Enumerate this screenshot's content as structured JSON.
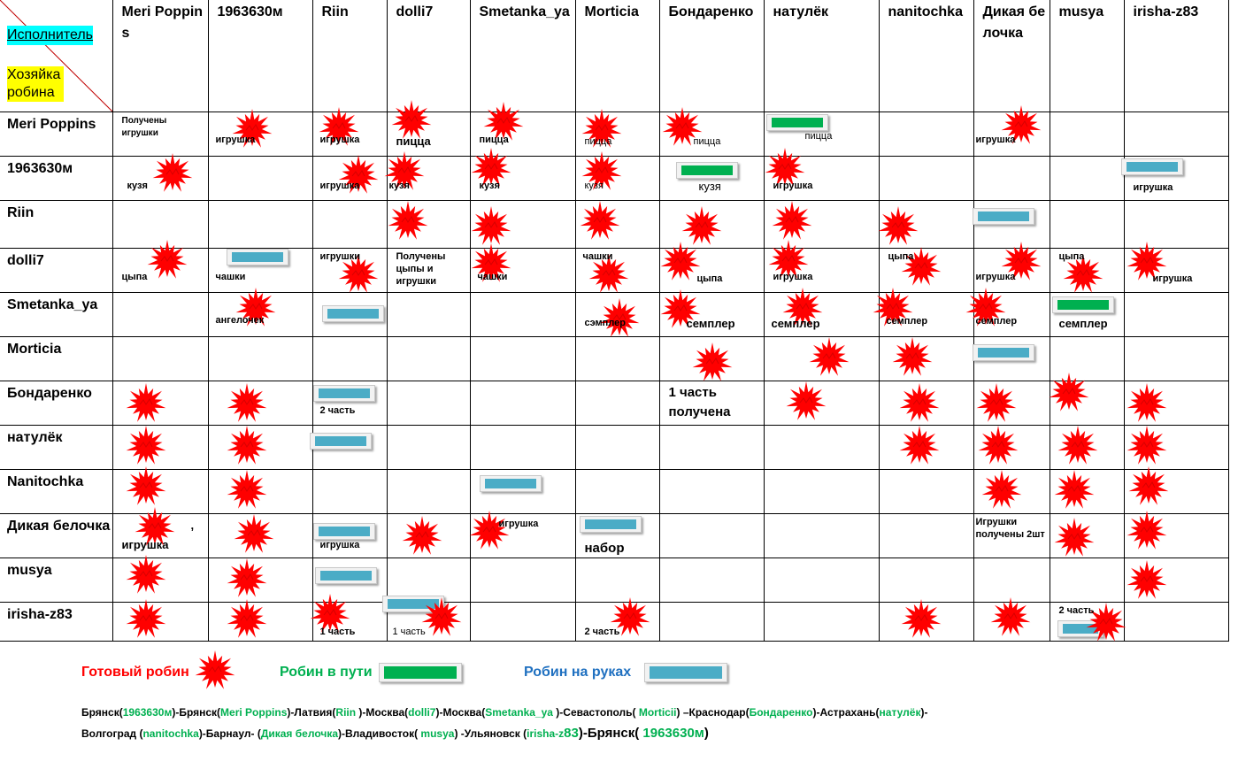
{
  "corner": {
    "top": "Исполнитель",
    "bottom": "Хозяйка робина"
  },
  "headers": [
    "Meri Poppins",
    "1963630м",
    "Riin",
    "dolli7",
    "Smetanka_ya",
    "Morticia",
    "Бондаренко",
    "натулёк",
    "nanitochka",
    "Дикая белочка",
    "musya",
    "irisha-z83"
  ],
  "rows": [
    "Meri Poppins",
    "1963630м",
    "Riin",
    "dolli7",
    "Smetanka_ya",
    "Morticia",
    "Бондаренко",
    "натулёк",
    "Nanitochka",
    "Дикая белочка",
    "musya",
    "irisha-z83"
  ],
  "labels": {
    "r0c0": "Получены игрушки",
    "r0c1": "игрушка",
    "r0c2": "игрушка",
    "r0c3": "пицца",
    "r0c4": "пицца",
    "r0c5": "пицца",
    "r0c6": "пицца",
    "r0c7": "пицца",
    "r0c9": "игрушка",
    "r1c0": "кузя",
    "r1c2": "игрушка",
    "r1c3": "кузя",
    "r1c4": "кузя",
    "r1c5": "кузя",
    "r1c6": "кузя",
    "r1c7": "игрушка",
    "r1c11": "игрушка",
    "r3c0": "цыпа",
    "r3c1": "чашки",
    "r3c2": "игрушки",
    "r3c3": "Получены цыпы и игрушки",
    "r3c4": "чашки",
    "r3c5": "чашки",
    "r3c6": "цыпа",
    "r3c7": "игрушка",
    "r3c8": "цыпа",
    "r3c9": "игрушка",
    "r3c10": "цыпа",
    "r3c11": "игрушка",
    "r4c1": "ангелочек",
    "r4c5": "сэмплер",
    "r4c6": "семплер",
    "r4c7": "семплер",
    "r4c8": "семплер",
    "r4c9": "семплер",
    "r4c10": "семплер",
    "r6c2": "2 часть",
    "r6c6": "1 часть получена",
    "r9c0a": ",",
    "r9c0b": "игрушка",
    "r9c2": "игрушка",
    "r9c4": "игрушка",
    "r9c5": "набор",
    "r9c9": "Игрушки получены 2шт",
    "r11c2": "1 часть",
    "r11c3": "1 часть",
    "r11c5": "2 часть",
    "r11c10": "2 часть"
  },
  "legend": {
    "ready": "Готовый робин",
    "in_transit": "Робин в пути",
    "on_hands": "Робин на руках"
  },
  "route": {
    "p1": "Брянск(",
    "n1": "1963630м",
    "p2": ")-Брянск(",
    "n2": "Meri Poppins",
    "p3": ")-Латвия(",
    "n3": "Riin ",
    "p4": ")-Москва(",
    "n4": "dolli7",
    "p5": ")-Москва(",
    "n5": "Smetanka_ya ",
    "p6": ")-Севастополь( ",
    "n6": "Morticii",
    "p7": ") –Краснодар(",
    "n7": "Бондаренко",
    "p8": ")-Астрахань(",
    "n8": "натулёк",
    "p9": ")-",
    "p10": "Волгоград (",
    "n10": "nanitochka",
    "p11": ")-Барнаул- (",
    "n11": "Дикая белочка",
    "p12": ")-Владивосток( ",
    "n12": "musya",
    "p13": ") -Ульяновск (",
    "n13": "irisha-z",
    "n13b": "83",
    "p14": ")-Брянск( ",
    "n14": "1963630м",
    "p15": ")"
  },
  "colors": {
    "star": "#ff0000",
    "bar_blue": "#4bacc6",
    "bar_green": "#00b050",
    "legend_ready": "#ff0000",
    "legend_transit": "#00b050",
    "legend_hands": "#1f70c0"
  }
}
